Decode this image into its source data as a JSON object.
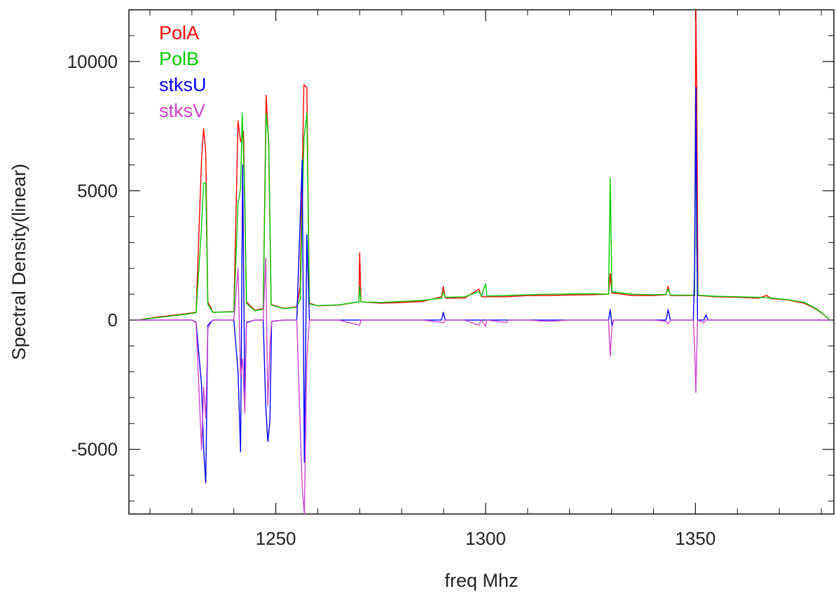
{
  "chart_data": {
    "type": "line",
    "title": "",
    "xlabel": "freq Mhz",
    "ylabel": "Spectral Density(linear)",
    "xlim": [
      1215,
      1383
    ],
    "ylim": [
      -7500,
      12000
    ],
    "x_ticks": [
      1250,
      1300,
      1350
    ],
    "x_tick_labels": [
      "1250",
      "1300",
      "1350"
    ],
    "y_ticks": [
      -5000,
      0,
      5000,
      10000
    ],
    "y_tick_labels": [
      "-5000",
      "0",
      "5000",
      "10000"
    ],
    "grid": false,
    "legend_position": "top-left",
    "series": [
      {
        "name": "PolA",
        "color": "#ff0000",
        "points": [
          [
            1217,
            0
          ],
          [
            1222,
            120
          ],
          [
            1228,
            230
          ],
          [
            1231,
            300
          ],
          [
            1232.3,
            6200
          ],
          [
            1232.8,
            7400
          ],
          [
            1233.3,
            6500
          ],
          [
            1233.8,
            700
          ],
          [
            1235,
            300
          ],
          [
            1240,
            330
          ],
          [
            1241,
            7700
          ],
          [
            1241.6,
            6900
          ],
          [
            1242.3,
            7300
          ],
          [
            1243,
            700
          ],
          [
            1245,
            380
          ],
          [
            1247,
            450
          ],
          [
            1247.7,
            8700
          ],
          [
            1248.3,
            6800
          ],
          [
            1248.9,
            600
          ],
          [
            1252,
            450
          ],
          [
            1255,
            520
          ],
          [
            1255.8,
            1300
          ],
          [
            1256.7,
            9100
          ],
          [
            1257.4,
            9000
          ],
          [
            1258,
            650
          ],
          [
            1260,
            550
          ],
          [
            1265,
            580
          ],
          [
            1269.8,
            700
          ],
          [
            1270,
            2600
          ],
          [
            1270.3,
            700
          ],
          [
            1275,
            650
          ],
          [
            1280,
            680
          ],
          [
            1285,
            720
          ],
          [
            1289.5,
            900
          ],
          [
            1289.9,
            1300
          ],
          [
            1290.4,
            850
          ],
          [
            1295,
            850
          ],
          [
            1298.4,
            1200
          ],
          [
            1299,
            900
          ],
          [
            1300,
            900
          ],
          [
            1305,
            900
          ],
          [
            1310,
            950
          ],
          [
            1315,
            950
          ],
          [
            1320,
            970
          ],
          [
            1325,
            980
          ],
          [
            1329.3,
            1000
          ],
          [
            1329.7,
            1800
          ],
          [
            1330.1,
            1050
          ],
          [
            1335,
            950
          ],
          [
            1340,
            950
          ],
          [
            1343,
            980
          ],
          [
            1343.5,
            1300
          ],
          [
            1344,
            950
          ],
          [
            1349.8,
            950
          ],
          [
            1350.1,
            12000
          ],
          [
            1350.3,
            9100
          ],
          [
            1350.6,
            950
          ],
          [
            1355,
            900
          ],
          [
            1360,
            880
          ],
          [
            1365,
            850
          ],
          [
            1367,
            950
          ],
          [
            1368,
            830
          ],
          [
            1372,
            780
          ],
          [
            1376,
            650
          ],
          [
            1379,
            400
          ],
          [
            1381,
            150
          ],
          [
            1382,
            0
          ]
        ]
      },
      {
        "name": "PolB",
        "color": "#00cc00",
        "points": [
          [
            1217,
            0
          ],
          [
            1222,
            100
          ],
          [
            1228,
            210
          ],
          [
            1231,
            280
          ],
          [
            1232.3,
            3600
          ],
          [
            1232.8,
            5300
          ],
          [
            1233.3,
            5300
          ],
          [
            1233.8,
            600
          ],
          [
            1235,
            300
          ],
          [
            1240,
            320
          ],
          [
            1241,
            4500
          ],
          [
            1241.6,
            5100
          ],
          [
            1242,
            8000
          ],
          [
            1242.6,
            4800
          ],
          [
            1243,
            650
          ],
          [
            1245,
            360
          ],
          [
            1247,
            420
          ],
          [
            1247.7,
            8000
          ],
          [
            1248.3,
            7000
          ],
          [
            1248.9,
            580
          ],
          [
            1252,
            440
          ],
          [
            1255,
            500
          ],
          [
            1255.8,
            800
          ],
          [
            1256.7,
            7000
          ],
          [
            1257.4,
            8000
          ],
          [
            1258,
            620
          ],
          [
            1260,
            560
          ],
          [
            1265,
            590
          ],
          [
            1269.8,
            700
          ],
          [
            1270,
            1300
          ],
          [
            1270.3,
            700
          ],
          [
            1275,
            680
          ],
          [
            1280,
            720
          ],
          [
            1285,
            760
          ],
          [
            1289.5,
            850
          ],
          [
            1289.9,
            1100
          ],
          [
            1290.4,
            880
          ],
          [
            1295,
            900
          ],
          [
            1298.4,
            1100
          ],
          [
            1299,
            920
          ],
          [
            1300,
            1400
          ],
          [
            1300.3,
            930
          ],
          [
            1305,
            950
          ],
          [
            1310,
            980
          ],
          [
            1315,
            1000
          ],
          [
            1320,
            1010
          ],
          [
            1325,
            1020
          ],
          [
            1329.3,
            1000
          ],
          [
            1329.7,
            5500
          ],
          [
            1330.1,
            1100
          ],
          [
            1335,
            1000
          ],
          [
            1340,
            980
          ],
          [
            1343,
            990
          ],
          [
            1343.5,
            1200
          ],
          [
            1344,
            970
          ],
          [
            1349.8,
            960
          ],
          [
            1350.1,
            9000
          ],
          [
            1350.3,
            2800
          ],
          [
            1350.6,
            960
          ],
          [
            1355,
            920
          ],
          [
            1360,
            900
          ],
          [
            1365,
            880
          ],
          [
            1368,
            850
          ],
          [
            1372,
            790
          ],
          [
            1376,
            680
          ],
          [
            1379,
            420
          ],
          [
            1381,
            160
          ],
          [
            1382,
            0
          ]
        ]
      },
      {
        "name": "stksU",
        "color": "#0000ff",
        "points": [
          [
            1217,
            0
          ],
          [
            1230,
            0
          ],
          [
            1231,
            -80
          ],
          [
            1232.3,
            -2500
          ],
          [
            1232.8,
            -5000
          ],
          [
            1233.3,
            -6300
          ],
          [
            1233.8,
            -200
          ],
          [
            1235,
            0
          ],
          [
            1240,
            0
          ],
          [
            1241,
            -2000
          ],
          [
            1241.6,
            -5100
          ],
          [
            1242.1,
            6000
          ],
          [
            1242.6,
            -3000
          ],
          [
            1243,
            -100
          ],
          [
            1245,
            0
          ],
          [
            1247,
            0
          ],
          [
            1247.6,
            -3300
          ],
          [
            1248.1,
            -4700
          ],
          [
            1248.6,
            -3900
          ],
          [
            1249,
            -50
          ],
          [
            1252,
            0
          ],
          [
            1255,
            0
          ],
          [
            1256.3,
            6200
          ],
          [
            1256.8,
            -5500
          ],
          [
            1257.4,
            3300
          ],
          [
            1258,
            0
          ],
          [
            1265,
            0
          ],
          [
            1270,
            0
          ],
          [
            1275,
            0
          ],
          [
            1280,
            0
          ],
          [
            1285,
            0
          ],
          [
            1289.5,
            0
          ],
          [
            1289.9,
            300
          ],
          [
            1290.4,
            0
          ],
          [
            1295,
            0
          ],
          [
            1299,
            0
          ],
          [
            1300,
            0
          ],
          [
            1305,
            0
          ],
          [
            1310,
            0
          ],
          [
            1315,
            0
          ],
          [
            1320,
            0
          ],
          [
            1325,
            0
          ],
          [
            1329.3,
            0
          ],
          [
            1329.7,
            400
          ],
          [
            1330.1,
            -200
          ],
          [
            1330.5,
            0
          ],
          [
            1335,
            0
          ],
          [
            1340,
            0
          ],
          [
            1343,
            0
          ],
          [
            1343.5,
            400
          ],
          [
            1344,
            0
          ],
          [
            1349.5,
            0
          ],
          [
            1349.8,
            2000
          ],
          [
            1350.1,
            9000
          ],
          [
            1350.5,
            0
          ],
          [
            1352,
            0
          ],
          [
            1352.5,
            200
          ],
          [
            1353,
            0
          ],
          [
            1360,
            0
          ],
          [
            1370,
            0
          ],
          [
            1382,
            0
          ]
        ]
      },
      {
        "name": "stksV",
        "color": "#cc44cc",
        "points": [
          [
            1217,
            0
          ],
          [
            1230,
            0
          ],
          [
            1231,
            -100
          ],
          [
            1232.3,
            -5000
          ],
          [
            1232.8,
            -2600
          ],
          [
            1233.3,
            -3800
          ],
          [
            1233.8,
            -300
          ],
          [
            1235,
            0
          ],
          [
            1240,
            0
          ],
          [
            1241,
            2000
          ],
          [
            1241.6,
            -2200
          ],
          [
            1242.1,
            -1500
          ],
          [
            1242.6,
            -3600
          ],
          [
            1243,
            -80
          ],
          [
            1245,
            0
          ],
          [
            1247,
            0
          ],
          [
            1247.6,
            2400
          ],
          [
            1248.1,
            -3300
          ],
          [
            1248.6,
            -1000
          ],
          [
            1249,
            -40
          ],
          [
            1252,
            0
          ],
          [
            1255,
            0
          ],
          [
            1256.3,
            -6500
          ],
          [
            1256.8,
            -7500
          ],
          [
            1257.4,
            -1500
          ],
          [
            1258,
            0
          ],
          [
            1265,
            0
          ],
          [
            1270,
            -200
          ],
          [
            1270.3,
            0
          ],
          [
            1275,
            0
          ],
          [
            1280,
            0
          ],
          [
            1285,
            0
          ],
          [
            1290,
            -100
          ],
          [
            1290.4,
            0
          ],
          [
            1295,
            0
          ],
          [
            1298.4,
            -200
          ],
          [
            1299,
            0
          ],
          [
            1300,
            -250
          ],
          [
            1300.3,
            0
          ],
          [
            1305,
            -100
          ],
          [
            1305.3,
            0
          ],
          [
            1310,
            0
          ],
          [
            1315,
            -50
          ],
          [
            1320,
            0
          ],
          [
            1325,
            0
          ],
          [
            1329.3,
            0
          ],
          [
            1329.7,
            -1400
          ],
          [
            1330.1,
            -300
          ],
          [
            1330.5,
            0
          ],
          [
            1335,
            0
          ],
          [
            1340,
            0
          ],
          [
            1343,
            -50
          ],
          [
            1343.5,
            -150
          ],
          [
            1344,
            0
          ],
          [
            1349.5,
            0
          ],
          [
            1349.8,
            -1000
          ],
          [
            1350.1,
            -2800
          ],
          [
            1350.5,
            0
          ],
          [
            1352,
            -100
          ],
          [
            1352.5,
            0
          ],
          [
            1360,
            0
          ],
          [
            1370,
            0
          ],
          [
            1382,
            0
          ]
        ]
      }
    ]
  }
}
